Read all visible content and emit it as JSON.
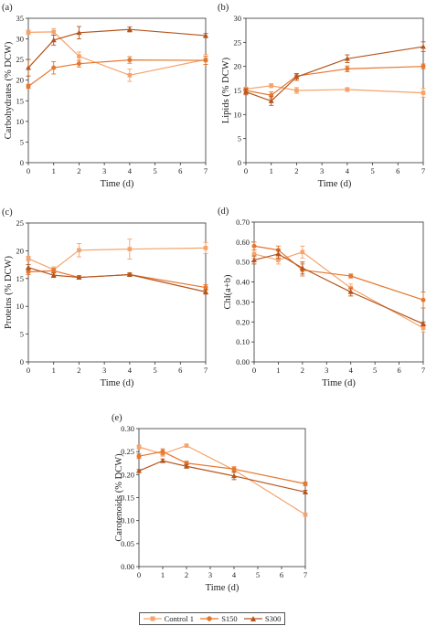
{
  "series_styles": [
    {
      "name": "Control 1",
      "color": "#f5a36a",
      "marker": "square"
    },
    {
      "name": "S150",
      "color": "#e5772e",
      "marker": "circle"
    },
    {
      "name": "S300",
      "color": "#b5551d",
      "marker": "triangle"
    }
  ],
  "legend": {
    "placement": "bottom-center",
    "items": [
      "Control 1",
      "S150",
      "S300"
    ]
  },
  "chart_data": [
    {
      "id": "a",
      "panel_label": "(a)",
      "type": "line",
      "xlabel": "Time (d)",
      "ylabel": "Carbohydrates (% DCW)",
      "xlim": [
        0,
        7
      ],
      "ylim": [
        0,
        35
      ],
      "xticks": [
        0,
        1,
        2,
        3,
        4,
        5,
        6,
        7
      ],
      "yticks": [
        0,
        5,
        10,
        15,
        20,
        25,
        30,
        35
      ],
      "x": [
        0,
        1,
        2,
        4,
        7
      ],
      "series": [
        {
          "name": "Control 1",
          "values": [
            31.6,
            31.7,
            25.8,
            21.2,
            25.0
          ],
          "err": [
            0.5,
            0.8,
            1.0,
            1.5,
            1.2
          ]
        },
        {
          "name": "S150",
          "values": [
            18.5,
            23.0,
            24.0,
            24.9,
            24.8
          ],
          "err": [
            0.5,
            1.5,
            0.8,
            0.8,
            1.0
          ]
        },
        {
          "name": "S300",
          "values": [
            23.0,
            29.7,
            31.5,
            32.3,
            30.8
          ],
          "err": [
            2.0,
            1.2,
            1.5,
            0.6,
            0.5
          ]
        }
      ]
    },
    {
      "id": "b",
      "panel_label": "(b)",
      "type": "line",
      "xlabel": "Time (d)",
      "ylabel": "Lipids (% DCW)",
      "xlim": [
        0,
        7
      ],
      "ylim": [
        0,
        30
      ],
      "xticks": [
        0,
        1,
        2,
        3,
        4,
        5,
        6,
        7
      ],
      "yticks": [
        0,
        5,
        10,
        15,
        20,
        25,
        30
      ],
      "x": [
        0,
        1,
        2,
        4,
        7
      ],
      "series": [
        {
          "name": "Control 1",
          "values": [
            15.3,
            16.0,
            15.0,
            15.2,
            14.5
          ],
          "err": [
            0.4,
            0.4,
            0.6,
            0.4,
            0.9
          ]
        },
        {
          "name": "S150",
          "values": [
            15.0,
            14.0,
            18.0,
            19.5,
            20.0
          ],
          "err": [
            0.5,
            0.7,
            0.5,
            0.6,
            0.5
          ]
        },
        {
          "name": "S300",
          "values": [
            14.7,
            12.8,
            17.8,
            21.6,
            24.1
          ],
          "err": [
            0.6,
            0.9,
            0.7,
            0.8,
            1.0
          ]
        }
      ]
    },
    {
      "id": "c",
      "panel_label": "(c)",
      "type": "line",
      "xlabel": "Time (d)",
      "ylabel": "Proteins (% DCW)",
      "xlim": [
        0,
        7
      ],
      "ylim": [
        0,
        25
      ],
      "xticks": [
        0,
        1,
        2,
        3,
        4,
        5,
        6,
        7
      ],
      "yticks": [
        0,
        5,
        10,
        15,
        20,
        25
      ],
      "x": [
        0,
        1,
        2,
        4,
        7
      ],
      "series": [
        {
          "name": "Control 1",
          "values": [
            18.6,
            16.6,
            20.1,
            20.3,
            20.5
          ],
          "err": [
            0.4,
            0.5,
            1.2,
            1.8,
            1.0
          ]
        },
        {
          "name": "S150",
          "values": [
            16.2,
            16.4,
            15.2,
            15.7,
            13.4
          ],
          "err": [
            0.5,
            0.4,
            0.3,
            0.3,
            0.5
          ]
        },
        {
          "name": "S300",
          "values": [
            17.0,
            15.6,
            15.2,
            15.7,
            12.6
          ],
          "err": [
            0.5,
            0.4,
            0.3,
            0.3,
            0.4
          ]
        }
      ]
    },
    {
      "id": "d",
      "panel_label": "(d)",
      "type": "line",
      "xlabel": "Time (d)",
      "ylabel": "Chl(a+b)",
      "xlim": [
        0,
        7
      ],
      "ylim": [
        0.0,
        0.7
      ],
      "xticks": [
        0,
        1,
        2,
        3,
        4,
        5,
        6,
        7
      ],
      "yticks": [
        0.0,
        0.1,
        0.2,
        0.3,
        0.4,
        0.5,
        0.6,
        0.7
      ],
      "x": [
        0,
        1,
        2,
        4,
        7
      ],
      "series": [
        {
          "name": "Control 1",
          "values": [
            0.54,
            0.51,
            0.55,
            0.37,
            0.17
          ],
          "err": [
            0.02,
            0.02,
            0.03,
            0.02,
            0.02
          ]
        },
        {
          "name": "S150",
          "values": [
            0.58,
            0.56,
            0.46,
            0.43,
            0.31
          ],
          "err": [
            0.02,
            0.02,
            0.03,
            0.01,
            0.04
          ]
        },
        {
          "name": "S300",
          "values": [
            0.51,
            0.54,
            0.47,
            0.35,
            0.19
          ],
          "err": [
            0.02,
            0.02,
            0.03,
            0.02,
            0.01
          ]
        }
      ]
    },
    {
      "id": "e",
      "panel_label": "(e)",
      "type": "line",
      "xlabel": "Time (d)",
      "ylabel": "Carotenoids (% DCW)",
      "xlim": [
        0,
        7
      ],
      "ylim": [
        0.0,
        0.3
      ],
      "xticks": [
        0,
        1,
        2,
        3,
        4,
        5,
        6,
        7
      ],
      "yticks": [
        0.0,
        0.05,
        0.1,
        0.15,
        0.2,
        0.25,
        0.3
      ],
      "x": [
        0,
        1,
        2,
        4,
        7
      ],
      "series": [
        {
          "name": "Control 1",
          "values": [
            0.26,
            0.245,
            0.263,
            0.21,
            0.113
          ],
          "err": [
            0.004,
            0.005,
            0.003,
            0.004,
            0.003
          ]
        },
        {
          "name": "S150",
          "values": [
            0.24,
            0.25,
            0.225,
            0.212,
            0.18
          ],
          "err": [
            0.005,
            0.006,
            0.004,
            0.005,
            0.004
          ]
        },
        {
          "name": "S300",
          "values": [
            0.208,
            0.23,
            0.218,
            0.197,
            0.162
          ],
          "err": [
            0.003,
            0.004,
            0.004,
            0.008,
            0.004
          ]
        }
      ]
    }
  ]
}
